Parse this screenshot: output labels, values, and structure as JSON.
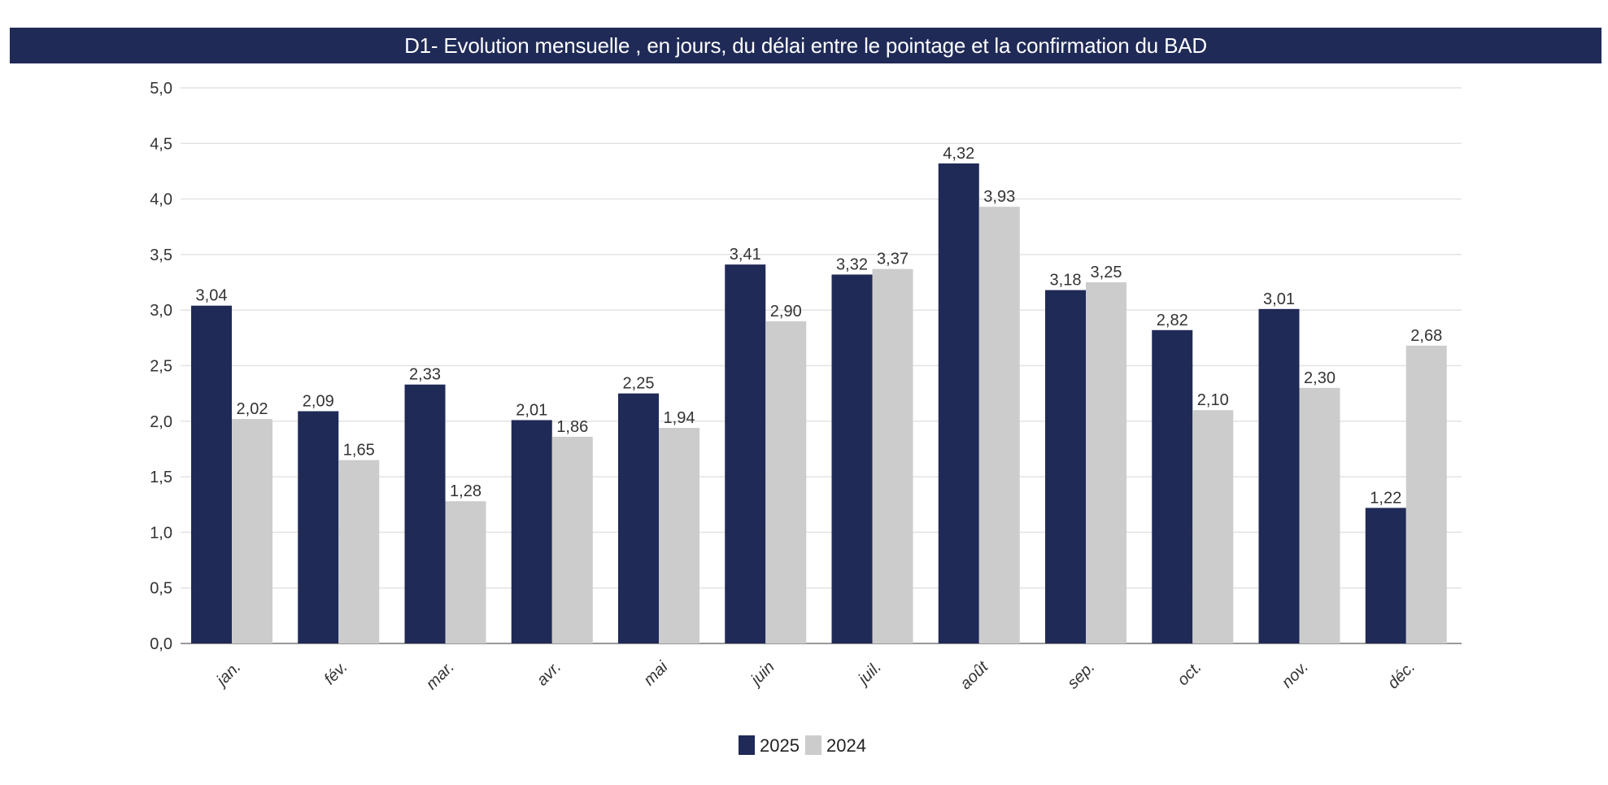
{
  "chart_data": {
    "type": "bar",
    "title": "D1- Evolution mensuelle , en jours, du délai entre le pointage et la confirmation du BAD",
    "categories": [
      "jan.",
      "fév.",
      "mar.",
      "avr.",
      "mai",
      "juin",
      "juil.",
      "août",
      "sep.",
      "oct.",
      "nov.",
      "déc."
    ],
    "series": [
      {
        "name": "2025",
        "color": "#1f2a57",
        "values": [
          3.04,
          2.09,
          2.33,
          2.01,
          2.25,
          3.41,
          3.32,
          4.32,
          3.18,
          2.82,
          3.01,
          1.22
        ],
        "labels": [
          "3,04",
          "2,09",
          "2,33",
          "2,01",
          "2,25",
          "3,41",
          "3,32",
          "4,32",
          "3,18",
          "2,82",
          "3,01",
          "1,22"
        ]
      },
      {
        "name": "2024",
        "color": "#cccccc",
        "values": [
          2.02,
          1.65,
          1.28,
          1.86,
          1.94,
          2.9,
          3.37,
          3.93,
          3.25,
          2.1,
          2.3,
          2.68
        ],
        "labels": [
          "2,02",
          "1,65",
          "1,28",
          "1,86",
          "1,94",
          "2,90",
          "3,37",
          "3,93",
          "3,25",
          "2,10",
          "2,30",
          "2,68"
        ]
      }
    ],
    "ylim": [
      0,
      5
    ],
    "yticks": [
      0,
      0.5,
      1,
      1.5,
      2,
      2.5,
      3,
      3.5,
      4,
      4.5,
      5
    ],
    "ytick_labels": [
      "0,0",
      "0,5",
      "1,0",
      "1,5",
      "2,0",
      "2,5",
      "3,0",
      "3,5",
      "4,0",
      "4,5",
      "5,0"
    ],
    "xlabel": "",
    "ylabel": "",
    "grid": true,
    "legend": "bottom-center"
  }
}
